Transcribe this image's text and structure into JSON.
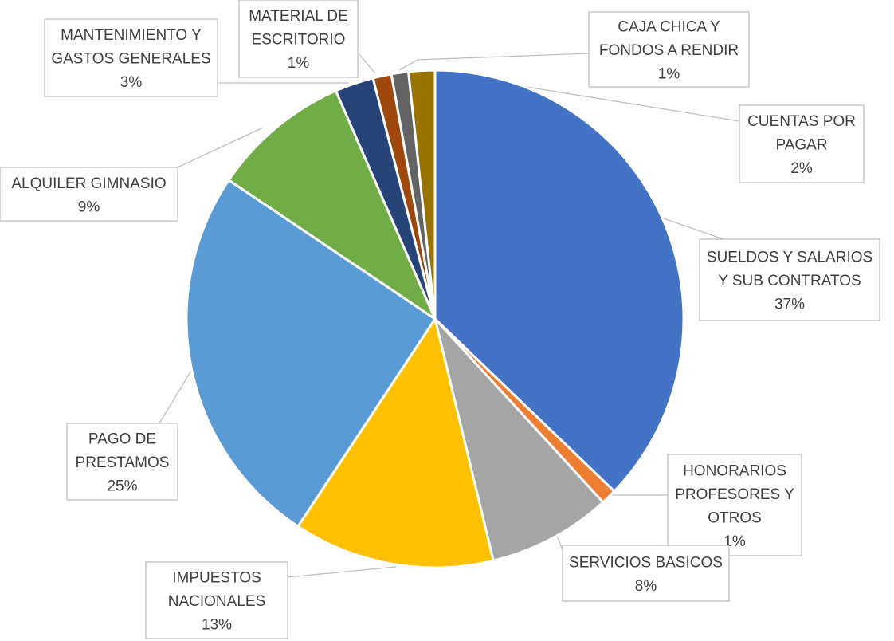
{
  "chart_data": {
    "type": "pie",
    "title": "",
    "start_angle_deg": 0,
    "direction": "clockwise",
    "slices": [
      {
        "label": [
          "SUELDOS Y SALARIOS",
          "Y SUB CONTRATOS"
        ],
        "value": 37,
        "value_label": "37%",
        "color": "#4472C4"
      },
      {
        "label": [
          "HONORARIOS",
          "PROFESORES Y",
          "OTROS"
        ],
        "value": 1,
        "value_label": "1%",
        "color": "#ED7D31"
      },
      {
        "label": [
          "SERVICIOS BASICOS"
        ],
        "value": 8,
        "value_label": "8%",
        "color": "#A5A5A5"
      },
      {
        "label": [
          "IMPUESTOS",
          "NACIONALES"
        ],
        "value": 13,
        "value_label": "13%",
        "color": "#FFC000"
      },
      {
        "label": [
          "PAGO DE",
          "PRESTAMOS"
        ],
        "value": 25,
        "value_label": "25%",
        "color": "#5B9BD5"
      },
      {
        "label": [
          "ALQUILER GIMNASIO"
        ],
        "value": 9,
        "value_label": "9%",
        "color": "#70AD47"
      },
      {
        "label": [
          "MANTENIMIENTO Y",
          "GASTOS GENERALES"
        ],
        "value": 2.5,
        "value_label": "3%",
        "color": "#264478"
      },
      {
        "label": [
          "MATERIAL DE",
          "ESCRITORIO"
        ],
        "value": 1.2,
        "value_label": "1%",
        "color": "#9E480E"
      },
      {
        "label": [
          "CAJA CHICA Y",
          "FONDOS A RENDIR"
        ],
        "value": 1.1,
        "value_label": "1%",
        "color": "#636363"
      },
      {
        "label": [
          "CUENTAS POR",
          "PAGAR"
        ],
        "value": 1.7,
        "value_label": "2%",
        "color": "#997300"
      }
    ]
  }
}
